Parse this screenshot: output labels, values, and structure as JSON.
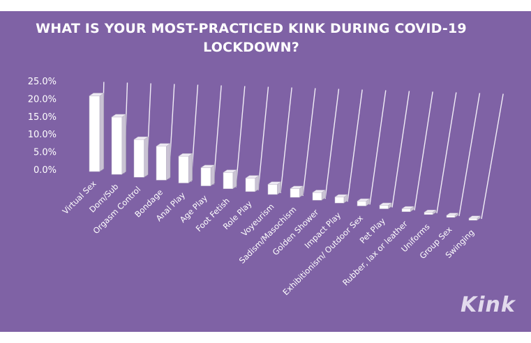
{
  "chart_data": {
    "type": "bar",
    "title": "WHAT IS YOUR MOST-PRACTICED KINK DURING COVID-19 LOCKDOWN?",
    "xlabel": "",
    "ylabel": "",
    "ylim": [
      0,
      25
    ],
    "y_ticks": [
      "25.0%",
      "20.0%",
      "15.0%",
      "10.0%",
      "5.0%",
      "0.0%"
    ],
    "grid": true,
    "categories": [
      "Virtual Sex",
      "Dom/Sub",
      "Orgasm Control",
      "Bondage",
      "Anal Play",
      "Age Play",
      "Foot Fetish",
      "Role Play",
      "Voyeurism",
      "Sadism/Masochism",
      "Golden Shower",
      "Impact Play",
      "Exhibitionism/ Outdoor Sex",
      "Pet Play",
      "Rubber, lax or leather",
      "Uniforms",
      "Group Sex",
      "Swinging"
    ],
    "values": [
      21.5,
      16.5,
      11.0,
      10.0,
      8.0,
      5.5,
      5.0,
      4.2,
      3.2,
      2.8,
      2.5,
      2.0,
      1.6,
      1.2,
      1.0,
      0.8,
      0.7,
      0.5
    ],
    "colors": {
      "background": "#7f62a5",
      "bar_front": "#ffffff",
      "bar_side": "#c9c2d3",
      "text": "#ffffff"
    }
  },
  "logo": {
    "text": "Kink"
  }
}
